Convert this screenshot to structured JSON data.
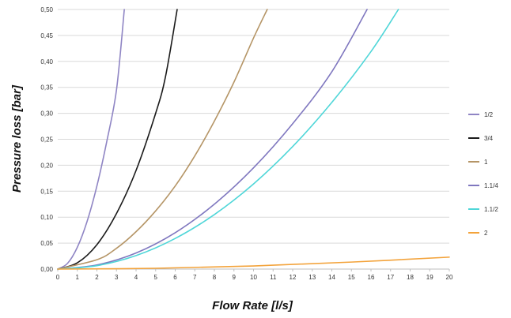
{
  "chart_data": {
    "type": "line",
    "xlabel": "Flow Rate [l/s]",
    "ylabel": "Pressure loss [bar]",
    "xlim": [
      0,
      20
    ],
    "ylim": [
      0,
      0.5
    ],
    "x_ticks": [
      "0",
      "1",
      "2",
      "3",
      "4",
      "5",
      "6",
      "7",
      "8",
      "9",
      "10",
      "11",
      "12",
      "13",
      "14",
      "15",
      "16",
      "17",
      "18",
      "19",
      "20"
    ],
    "y_ticks": [
      "0,00",
      "0,05",
      "0,10",
      "0,15",
      "0,20",
      "0,25",
      "0,30",
      "0,35",
      "0,40",
      "0,45",
      "0,50"
    ],
    "grid": "horizontal",
    "legend_position": "right",
    "series": [
      {
        "name": "1/2",
        "color": "#8f85c4",
        "x": [
          0,
          0.5,
          1,
          1.5,
          2,
          2.5,
          3,
          3.4
        ],
        "y": [
          0,
          0.011,
          0.042,
          0.092,
          0.16,
          0.245,
          0.345,
          0.5
        ]
      },
      {
        "name": "3/4",
        "color": "#1a1a1a",
        "x": [
          0,
          1,
          2,
          3,
          4,
          5,
          5.5,
          6.1
        ],
        "y": [
          0,
          0.012,
          0.047,
          0.107,
          0.19,
          0.3,
          0.37,
          0.5
        ]
      },
      {
        "name": "1",
        "color": "#b59566",
        "x": [
          0,
          2,
          3,
          4,
          5,
          6,
          7,
          8,
          9,
          10,
          10.7
        ],
        "y": [
          0,
          0.018,
          0.04,
          0.072,
          0.112,
          0.16,
          0.218,
          0.285,
          0.36,
          0.445,
          0.5
        ]
      },
      {
        "name": "1.1/4",
        "color": "#7f77bf",
        "x": [
          0,
          2,
          4,
          6,
          8,
          10,
          12,
          14,
          15.8
        ],
        "y": [
          0,
          0.008,
          0.031,
          0.07,
          0.125,
          0.195,
          0.28,
          0.38,
          0.5
        ]
      },
      {
        "name": "1.1/2",
        "color": "#4fd6d8",
        "x": [
          0,
          2,
          4,
          6,
          8,
          10,
          12,
          14,
          16,
          17.4
        ],
        "y": [
          0,
          0.0066,
          0.026,
          0.059,
          0.105,
          0.164,
          0.236,
          0.321,
          0.419,
          0.5
        ]
      },
      {
        "name": "2",
        "color": "#f3a33b",
        "x": [
          0,
          5,
          10,
          15,
          20
        ],
        "y": [
          0,
          0.0015,
          0.006,
          0.0135,
          0.023
        ]
      }
    ]
  }
}
